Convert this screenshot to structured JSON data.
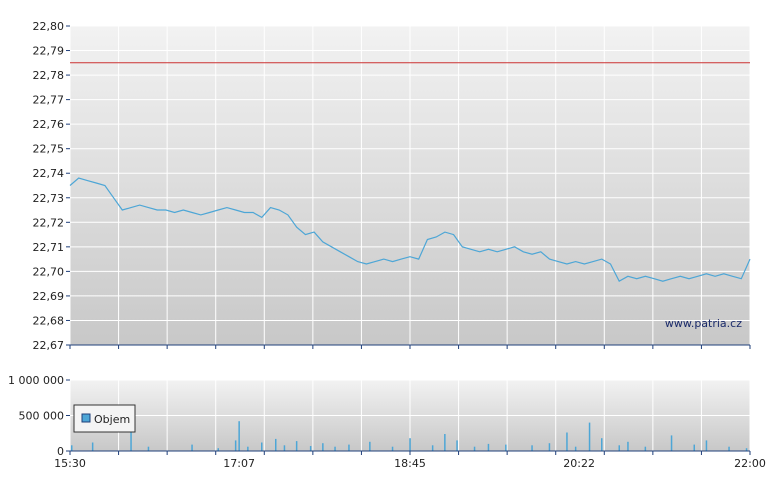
{
  "watermark": "www.patria.cz",
  "colors": {
    "price_line": "#4da6d6",
    "reference_line": "#cc3333",
    "volume_bar": "#4da6d6",
    "grid": "#ffffff",
    "axis": "#1f3f7a"
  },
  "chart_data": [
    {
      "type": "line",
      "ylim": [
        22.67,
        22.8
      ],
      "y_ticks": [
        "22,67",
        "22,68",
        "22,69",
        "22,70",
        "22,71",
        "22,72",
        "22,73",
        "22,74",
        "22,75",
        "22,76",
        "22,77",
        "22,78",
        "22,79",
        "22,80"
      ],
      "reference_value": 22.785,
      "x_range": [
        "15:30",
        "22:00"
      ],
      "grid": true,
      "series": [
        {
          "x": [
            "15:30",
            "15:35",
            "15:40",
            "15:45",
            "15:50",
            "15:55",
            "16:00",
            "16:05",
            "16:10",
            "16:15",
            "16:20",
            "16:25",
            "16:30",
            "16:35",
            "16:40",
            "16:45",
            "16:50",
            "16:55",
            "17:00",
            "17:05",
            "17:10",
            "17:15",
            "17:20",
            "17:25",
            "17:30",
            "17:35",
            "17:40",
            "17:45",
            "17:50",
            "17:55",
            "18:00",
            "18:05",
            "18:10",
            "18:15",
            "18:20",
            "18:25",
            "18:30",
            "18:35",
            "18:40",
            "18:45",
            "18:50",
            "18:55",
            "19:00",
            "19:05",
            "19:10",
            "19:15",
            "19:20",
            "19:25",
            "19:30",
            "19:35",
            "19:40",
            "19:45",
            "19:50",
            "19:55",
            "20:00",
            "20:05",
            "20:10",
            "20:15",
            "20:20",
            "20:25",
            "20:30",
            "20:35",
            "20:40",
            "20:45",
            "20:50",
            "20:55",
            "21:00",
            "21:05",
            "21:10",
            "21:15",
            "21:20",
            "21:25",
            "21:30",
            "21:35",
            "21:40",
            "21:45",
            "21:50",
            "21:55",
            "22:00"
          ],
          "values": [
            22.735,
            22.738,
            22.737,
            22.736,
            22.735,
            22.73,
            22.725,
            22.726,
            22.727,
            22.726,
            22.725,
            22.725,
            22.724,
            22.725,
            22.724,
            22.723,
            22.724,
            22.725,
            22.726,
            22.725,
            22.724,
            22.724,
            22.722,
            22.726,
            22.725,
            22.723,
            22.718,
            22.715,
            22.716,
            22.712,
            22.71,
            22.708,
            22.706,
            22.704,
            22.703,
            22.704,
            22.705,
            22.704,
            22.705,
            22.706,
            22.705,
            22.713,
            22.714,
            22.716,
            22.715,
            22.71,
            22.709,
            22.708,
            22.709,
            22.708,
            22.709,
            22.71,
            22.708,
            22.707,
            22.708,
            22.705,
            22.704,
            22.703,
            22.704,
            22.703,
            22.704,
            22.705,
            22.703,
            22.696,
            22.698,
            22.697,
            22.698,
            22.697,
            22.696,
            22.697,
            22.698,
            22.697,
            22.698,
            22.699,
            22.698,
            22.699,
            22.698,
            22.697,
            22.705
          ]
        }
      ]
    },
    {
      "type": "bar",
      "ylim": [
        0,
        1000000
      ],
      "y_ticks": [
        "0",
        "500 000",
        "1 000 000"
      ],
      "x_ticks": [
        "15:30",
        "17:07",
        "18:45",
        "20:22",
        "22:00"
      ],
      "legend": "Objem",
      "legend_position": "left",
      "grid": true,
      "series": [
        {
          "name": "Objem",
          "x": [
            "15:31",
            "15:43",
            "16:05",
            "16:15",
            "16:40",
            "16:55",
            "17:05",
            "17:07",
            "17:12",
            "17:20",
            "17:28",
            "17:33",
            "17:40",
            "17:48",
            "17:55",
            "18:02",
            "18:10",
            "18:22",
            "18:35",
            "18:45",
            "18:58",
            "19:05",
            "19:12",
            "19:22",
            "19:30",
            "19:40",
            "19:55",
            "20:05",
            "20:15",
            "20:20",
            "20:28",
            "20:35",
            "20:45",
            "20:50",
            "21:00",
            "21:15",
            "21:28",
            "21:35",
            "21:48",
            "21:58"
          ],
          "values": [
            80000,
            120000,
            350000,
            60000,
            90000,
            40000,
            150000,
            420000,
            60000,
            120000,
            170000,
            80000,
            140000,
            70000,
            110000,
            60000,
            90000,
            130000,
            60000,
            180000,
            80000,
            240000,
            150000,
            60000,
            100000,
            90000,
            80000,
            110000,
            260000,
            60000,
            400000,
            180000,
            80000,
            130000,
            60000,
            220000,
            90000,
            150000,
            60000,
            40000
          ]
        }
      ]
    }
  ]
}
